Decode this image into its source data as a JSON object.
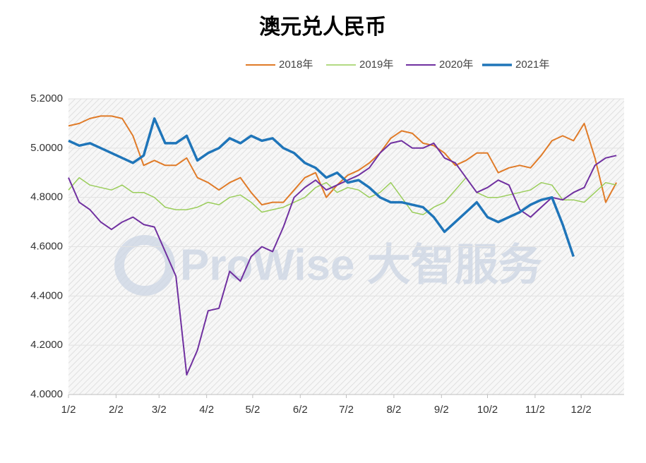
{
  "chart_data": {
    "type": "line",
    "title": "澳元兑人民币",
    "watermark": "ProWise 大智服务",
    "x": [
      0,
      7,
      14,
      21,
      28,
      35,
      42,
      49,
      56,
      63,
      70,
      77,
      84,
      91,
      98,
      105,
      112,
      119,
      126,
      133,
      140,
      147,
      154,
      161,
      168,
      175,
      182,
      189,
      196,
      203,
      210,
      217,
      224,
      231,
      238,
      245,
      252,
      259,
      266,
      273,
      280,
      287,
      294,
      301,
      308,
      315,
      322,
      329,
      336,
      343,
      350,
      357
    ],
    "xlim": [
      0,
      362
    ],
    "xticks": [
      {
        "value": 0,
        "label": "1/2"
      },
      {
        "value": 31,
        "label": "2/2"
      },
      {
        "value": 59,
        "label": "3/2"
      },
      {
        "value": 90,
        "label": "4/2"
      },
      {
        "value": 120,
        "label": "5/2"
      },
      {
        "value": 151,
        "label": "6/2"
      },
      {
        "value": 181,
        "label": "7/2"
      },
      {
        "value": 212,
        "label": "8/2"
      },
      {
        "value": 243,
        "label": "9/2"
      },
      {
        "value": 273,
        "label": "10/2"
      },
      {
        "value": 304,
        "label": "11/2"
      },
      {
        "value": 334,
        "label": "12/2"
      }
    ],
    "ylim": [
      4.0,
      5.2
    ],
    "yticks": [
      {
        "value": 4.0,
        "label": "4.0000"
      },
      {
        "value": 4.2,
        "label": "4.2000"
      },
      {
        "value": 4.4,
        "label": "4.4000"
      },
      {
        "value": 4.6,
        "label": "4.6000"
      },
      {
        "value": 4.8,
        "label": "4.8000"
      },
      {
        "value": 5.0,
        "label": "5.0000"
      },
      {
        "value": 5.2,
        "label": "5.2000"
      }
    ],
    "grid": true,
    "series": [
      {
        "name": "2018年",
        "color": "#e07b28",
        "width": 2,
        "values": [
          5.09,
          5.1,
          5.12,
          5.13,
          5.13,
          5.12,
          5.05,
          4.93,
          4.95,
          4.93,
          4.93,
          4.96,
          4.88,
          4.86,
          4.83,
          4.86,
          4.88,
          4.82,
          4.77,
          4.78,
          4.78,
          4.83,
          4.88,
          4.9,
          4.8,
          4.85,
          4.89,
          4.91,
          4.94,
          4.98,
          5.04,
          5.07,
          5.06,
          5.02,
          5.01,
          4.98,
          4.93,
          4.95,
          4.98,
          4.98,
          4.9,
          4.92,
          4.93,
          4.92,
          4.97,
          5.03,
          5.05,
          5.03,
          5.1,
          4.96,
          4.78,
          4.86
        ]
      },
      {
        "name": "2019年",
        "color": "#9acd5a",
        "width": 1.5,
        "values": [
          4.83,
          4.88,
          4.85,
          4.84,
          4.83,
          4.85,
          4.82,
          4.82,
          4.8,
          4.76,
          4.75,
          4.75,
          4.76,
          4.78,
          4.77,
          4.8,
          4.81,
          4.78,
          4.74,
          4.75,
          4.76,
          4.78,
          4.8,
          4.84,
          4.86,
          4.82,
          4.84,
          4.83,
          4.8,
          4.82,
          4.86,
          4.8,
          4.74,
          4.73,
          4.76,
          4.78,
          4.83,
          4.88,
          4.82,
          4.8,
          4.8,
          4.81,
          4.82,
          4.83,
          4.86,
          4.85,
          4.79,
          4.79,
          4.78,
          4.82,
          4.86,
          4.85
        ]
      },
      {
        "name": "2020年",
        "color": "#7030a0",
        "width": 2,
        "values": [
          4.88,
          4.78,
          4.75,
          4.7,
          4.67,
          4.7,
          4.72,
          4.69,
          4.68,
          4.58,
          4.48,
          4.08,
          4.18,
          4.34,
          4.35,
          4.5,
          4.46,
          4.56,
          4.6,
          4.58,
          4.68,
          4.8,
          4.84,
          4.87,
          4.83,
          4.85,
          4.87,
          4.89,
          4.92,
          4.98,
          5.02,
          5.03,
          5.0,
          5.0,
          5.02,
          4.96,
          4.94,
          4.88,
          4.82,
          4.84,
          4.87,
          4.85,
          4.75,
          4.72,
          4.76,
          4.8,
          4.79,
          4.82,
          4.84,
          4.93,
          4.96,
          4.97
        ]
      },
      {
        "name": "2021年",
        "color": "#1f75b9",
        "width": 3.5,
        "values": [
          5.03,
          5.01,
          5.02,
          5.0,
          4.98,
          4.96,
          4.94,
          4.97,
          5.12,
          5.02,
          5.02,
          5.05,
          4.95,
          4.98,
          5.0,
          5.04,
          5.02,
          5.05,
          5.03,
          5.04,
          5.0,
          4.98,
          4.94,
          4.92,
          4.88,
          4.9,
          4.86,
          4.87,
          4.84,
          4.8,
          4.78,
          4.78,
          4.77,
          4.76,
          4.72,
          4.66,
          4.7,
          4.74,
          4.78,
          4.72,
          4.7,
          4.72,
          4.74,
          4.77,
          4.79,
          4.8,
          4.69,
          4.56,
          null,
          null,
          null,
          null
        ]
      }
    ]
  }
}
